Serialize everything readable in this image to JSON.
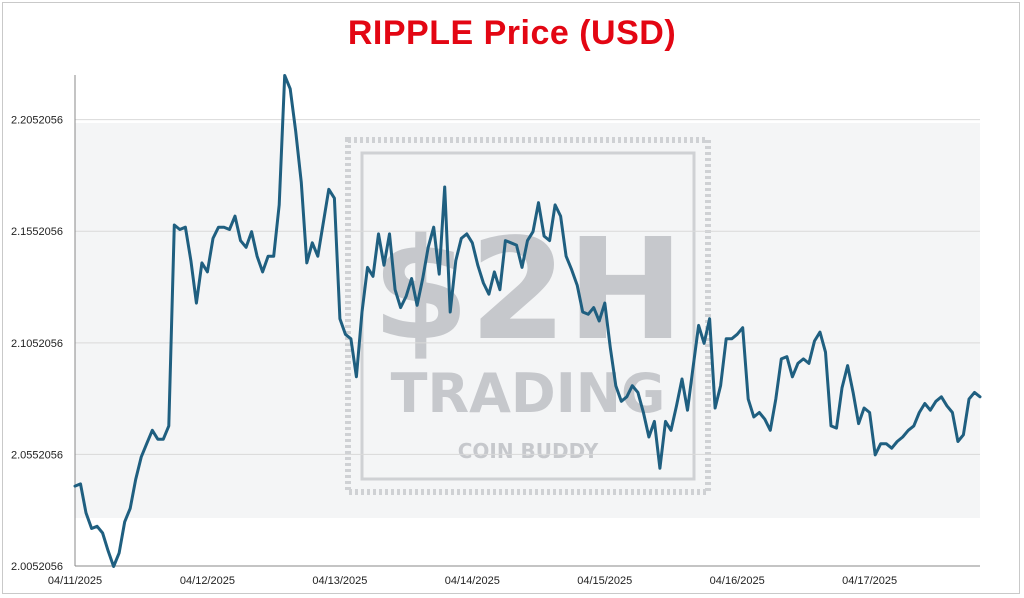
{
  "chart_data": {
    "type": "line",
    "title": "RIPPLE Price (USD)",
    "xlabel": "",
    "ylabel": "",
    "ylim": [
      2.0052056,
      2.2252056
    ],
    "yticks": [
      "2.0052056",
      "2.0552056",
      "2.1052056",
      "2.1552056",
      "2.2052056"
    ],
    "xticks": [
      "04/11/2025",
      "04/12/2025",
      "04/13/2025",
      "04/14/2025",
      "04/15/2025",
      "04/16/2025",
      "04/17/2025"
    ],
    "x_start": "04/11/2025",
    "x_step_hours": 1,
    "grid": "horizontal",
    "legend": "none",
    "series": [
      {
        "color": "#1f5f80",
        "values": [
          2.041,
          2.042,
          2.029,
          2.022,
          2.023,
          2.02,
          2.012,
          2.005,
          2.011,
          2.025,
          2.031,
          2.044,
          2.054,
          2.06,
          2.066,
          2.062,
          2.062,
          2.068,
          2.158,
          2.156,
          2.157,
          2.142,
          2.123,
          2.141,
          2.137,
          2.152,
          2.157,
          2.157,
          2.156,
          2.162,
          2.151,
          2.148,
          2.155,
          2.144,
          2.137,
          2.144,
          2.144,
          2.167,
          2.225,
          2.219,
          2.2,
          2.177,
          2.141,
          2.15,
          2.144,
          2.159,
          2.174,
          2.17,
          2.116,
          2.109,
          2.107,
          2.09,
          2.119,
          2.139,
          2.135,
          2.154,
          2.14,
          2.154,
          2.129,
          2.121,
          2.126,
          2.134,
          2.122,
          2.134,
          2.148,
          2.157,
          2.136,
          2.175,
          2.119,
          2.142,
          2.152,
          2.154,
          2.15,
          2.14,
          2.132,
          2.127,
          2.137,
          2.129,
          2.151,
          2.15,
          2.149,
          2.139,
          2.151,
          2.155,
          2.168,
          2.153,
          2.151,
          2.167,
          2.162,
          2.144,
          2.138,
          2.131,
          2.119,
          2.118,
          2.121,
          2.115,
          2.123,
          2.103,
          2.086,
          2.079,
          2.081,
          2.086,
          2.083,
          2.074,
          2.063,
          2.07,
          2.049,
          2.07,
          2.066,
          2.077,
          2.089,
          2.075,
          2.094,
          2.113,
          2.105,
          2.116,
          2.076,
          2.086,
          2.107,
          2.107,
          2.109,
          2.112,
          2.08,
          2.072,
          2.074,
          2.071,
          2.066,
          2.08,
          2.098,
          2.099,
          2.09,
          2.096,
          2.098,
          2.096,
          2.106,
          2.11,
          2.101,
          2.068,
          2.067,
          2.085,
          2.095,
          2.083,
          2.069,
          2.076,
          2.074,
          2.055,
          2.06,
          2.06,
          2.058,
          2.061,
          2.063,
          2.066,
          2.068,
          2.074,
          2.078,
          2.075,
          2.079,
          2.081,
          2.077,
          2.074,
          2.061,
          2.064,
          2.08,
          2.083,
          2.081
        ]
      }
    ]
  },
  "watermark": {
    "big_text": "$2H",
    "mid_text": "TRADING",
    "small_text": "COIN BUDDY",
    "color": "#c6c8cc"
  },
  "colors": {
    "title": "#e30613",
    "line": "#1f5f80",
    "grid": "#d9d9d9",
    "axis": "#888888"
  }
}
